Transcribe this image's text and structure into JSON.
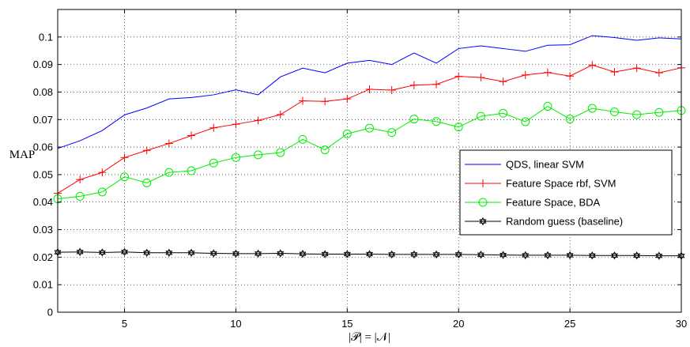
{
  "chart_data": {
    "type": "line",
    "xlabel": "|𝒫| = |𝒩|",
    "ylabel": "MAP",
    "xlim": [
      2,
      30
    ],
    "ylim": [
      0,
      0.11
    ],
    "xticks": [
      5,
      10,
      15,
      20,
      25,
      30
    ],
    "yticks": [
      0,
      0.01,
      0.02,
      0.03,
      0.04,
      0.05,
      0.06,
      0.07,
      0.08,
      0.09,
      0.1
    ],
    "ytick_labels": [
      "0",
      "0.01",
      "0.02",
      "0.03",
      "0.04",
      "0.05",
      "0.06",
      "0.07",
      "0.08",
      "0.09",
      "0.1"
    ],
    "grid": true,
    "legend_position": "right",
    "x": [
      2,
      3,
      4,
      5,
      6,
      7,
      8,
      9,
      10,
      11,
      12,
      13,
      14,
      15,
      16,
      17,
      18,
      19,
      20,
      21,
      22,
      23,
      24,
      25,
      26,
      27,
      28,
      29,
      30
    ],
    "series": [
      {
        "name": "QDS, linear SVM",
        "color": "#0000ff",
        "marker": "none",
        "values": [
          0.0595,
          0.0623,
          0.066,
          0.0717,
          0.0742,
          0.0775,
          0.078,
          0.079,
          0.0808,
          0.079,
          0.0855,
          0.0887,
          0.087,
          0.0905,
          0.0915,
          0.09,
          0.0942,
          0.0905,
          0.0958,
          0.0968,
          0.0958,
          0.0948,
          0.097,
          0.0972,
          0.1005,
          0.0998,
          0.0988,
          0.0997,
          0.0993
        ]
      },
      {
        "name": "Feature Space rbf, SVM",
        "color": "#ff0000",
        "marker": "plus",
        "values": [
          0.0432,
          0.0482,
          0.0508,
          0.0562,
          0.0588,
          0.0613,
          0.0642,
          0.067,
          0.0683,
          0.0697,
          0.0718,
          0.0768,
          0.0766,
          0.0775,
          0.081,
          0.0807,
          0.0825,
          0.0828,
          0.0857,
          0.0853,
          0.0838,
          0.0862,
          0.0871,
          0.0858,
          0.0898,
          0.0873,
          0.0887,
          0.087,
          0.0888
        ]
      },
      {
        "name": "Feature Space, BDA",
        "color": "#00ee00",
        "marker": "circle",
        "values": [
          0.0412,
          0.0421,
          0.0437,
          0.0492,
          0.047,
          0.0508,
          0.0514,
          0.0542,
          0.0562,
          0.0572,
          0.058,
          0.0628,
          0.059,
          0.0648,
          0.0669,
          0.0653,
          0.0702,
          0.0693,
          0.0673,
          0.0712,
          0.0723,
          0.0692,
          0.0748,
          0.0702,
          0.0741,
          0.0728,
          0.0718,
          0.0726,
          0.0733
        ]
      },
      {
        "name": "Random guess (baseline)",
        "color": "#000000",
        "marker": "hexagram",
        "values": [
          0.0218,
          0.0219,
          0.0217,
          0.0219,
          0.0216,
          0.0216,
          0.0216,
          0.0214,
          0.0213,
          0.0213,
          0.0214,
          0.0212,
          0.0211,
          0.0211,
          0.0211,
          0.021,
          0.021,
          0.021,
          0.021,
          0.0209,
          0.0208,
          0.0207,
          0.0207,
          0.0207,
          0.0206,
          0.0206,
          0.0206,
          0.0205,
          0.0205
        ]
      }
    ]
  }
}
